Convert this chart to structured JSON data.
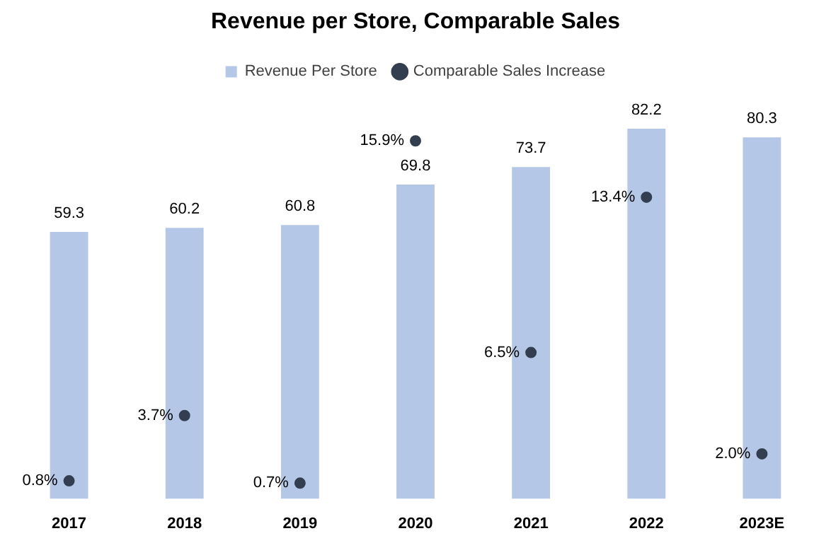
{
  "chart_data": {
    "type": "bar",
    "title": "Revenue per Store, Comparable Sales",
    "categories": [
      "2017",
      "2018",
      "2019",
      "2020",
      "2021",
      "2022",
      "2023E"
    ],
    "series": [
      {
        "name": "Revenue Per Store",
        "color": "#b4c7e7",
        "values": [
          59.3,
          60.2,
          60.8,
          69.8,
          73.7,
          82.2,
          80.3
        ],
        "value_labels": [
          "59.3",
          "60.2",
          "60.8",
          "69.8",
          "73.7",
          "82.2",
          "80.3"
        ]
      },
      {
        "name": "Comparable Sales Increase",
        "type": "scatter",
        "axis": "y2",
        "color": "#333f50",
        "values": [
          0.8,
          3.7,
          0.7,
          15.9,
          6.5,
          13.4,
          2.0
        ],
        "value_labels": [
          "0.8%",
          "3.7%",
          "0.7%",
          "15.9%",
          "6.5%",
          "13.4%",
          "2.0%"
        ]
      }
    ],
    "tick_labels": "x",
    "legend": "top",
    "grid": false,
    "marker": "circle"
  }
}
